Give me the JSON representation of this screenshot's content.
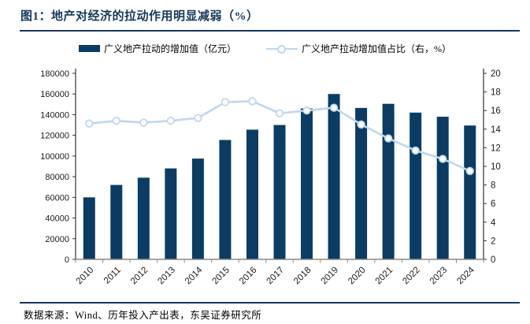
{
  "figure": {
    "title": "图1：地产对经济的拉动作用明显减弱（%）"
  },
  "legend": {
    "bar_label": "广义地产拉动的增加值（亿元）",
    "line_label": "广义地产拉动增加值占比（右，%）"
  },
  "footer": {
    "source": "数据来源：Wind、历年投入产出表，东吴证券研究所"
  },
  "colors": {
    "bar": "#0b3c63",
    "line": "#bdd7ee",
    "marker_fill": "#ffffff",
    "title": "#17375e",
    "rule": "#17375e",
    "axis_spine": "#333333",
    "x_axis": "#898989",
    "tick_text": "#1a1a1a"
  },
  "chart_data": {
    "type": "bar+line",
    "title": "图1：地产对经济的拉动作用明显减弱（%）",
    "categories": [
      "2010",
      "2011",
      "2012",
      "2013",
      "2014",
      "2015",
      "2016",
      "2017",
      "2018",
      "2019",
      "2020",
      "2021",
      "2022",
      "2023",
      "2024"
    ],
    "series": [
      {
        "name": "广义地产拉动的增加值（亿元）",
        "type": "bar",
        "axis": "left",
        "values": [
          60000,
          72000,
          79000,
          88000,
          97500,
          115500,
          125500,
          130000,
          146000,
          160000,
          146500,
          150500,
          142000,
          138000,
          129500
        ]
      },
      {
        "name": "广义地产拉动增加值占比（右，%）",
        "type": "line",
        "axis": "right",
        "values": [
          14.6,
          14.9,
          14.7,
          14.9,
          15.2,
          16.9,
          17.0,
          15.7,
          16.0,
          16.3,
          14.5,
          13.0,
          11.7,
          10.8,
          9.5
        ]
      }
    ],
    "left_axis": {
      "min": 0,
      "max": 180000,
      "step": 20000
    },
    "right_axis": {
      "min": 0,
      "max": 20,
      "step": 2
    },
    "grid": false,
    "legend_position": "top"
  }
}
